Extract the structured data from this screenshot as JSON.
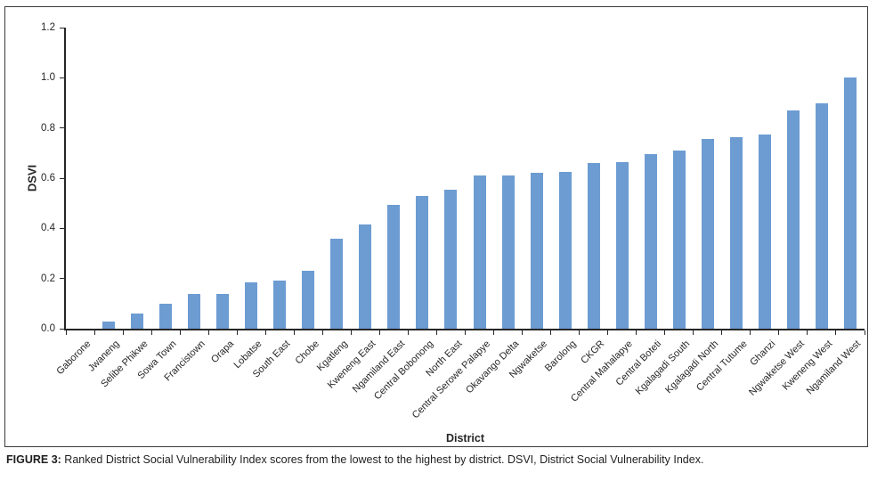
{
  "figure": {
    "caption_label": "FIGURE 3:",
    "caption_text": "Ranked District Social Vulnerability Index scores from the lowest to the highest by district. DSVI, District Social Vulnerability Index."
  },
  "chart_data": {
    "type": "bar",
    "title": "",
    "xlabel": "District",
    "ylabel": "DSVI",
    "ylim": [
      0,
      1.2
    ],
    "ytick_step": 0.2,
    "ytick_labels": [
      "0.0",
      "0.2",
      "0.4",
      "0.6",
      "0.8",
      "1.0",
      "1.2"
    ],
    "grid": false,
    "legend": "none",
    "bar_color": "#6C9CD2",
    "axis_color": "#262626",
    "categories": [
      "Gaborone",
      "Jwaneng",
      "Selibe Phikwe",
      "Sowa Town",
      "Francistown",
      "Orapa",
      "Lobatse",
      "South East",
      "Chobe",
      "Kgatleng",
      "Kweneng East",
      "Ngamiland East",
      "Central Bobonong",
      "North East",
      "Central Serowe Palapye",
      "Okavango Delta",
      "Ngwaketse",
      "Barolong",
      "CKGR",
      "Central Mahalapye",
      "Central Boteti",
      "Kgalagadi South",
      "Kgalagadi North",
      "Central Tutume",
      "Ghanzi",
      "Ngwaketse West",
      "Kweneng West",
      "Ngamiland West"
    ],
    "values": [
      0.0,
      0.03,
      0.06,
      0.1,
      0.14,
      0.14,
      0.185,
      0.19,
      0.23,
      0.36,
      0.415,
      0.495,
      0.53,
      0.555,
      0.61,
      0.61,
      0.62,
      0.625,
      0.66,
      0.665,
      0.695,
      0.71,
      0.755,
      0.765,
      0.775,
      0.87,
      0.9,
      1.0
    ]
  }
}
